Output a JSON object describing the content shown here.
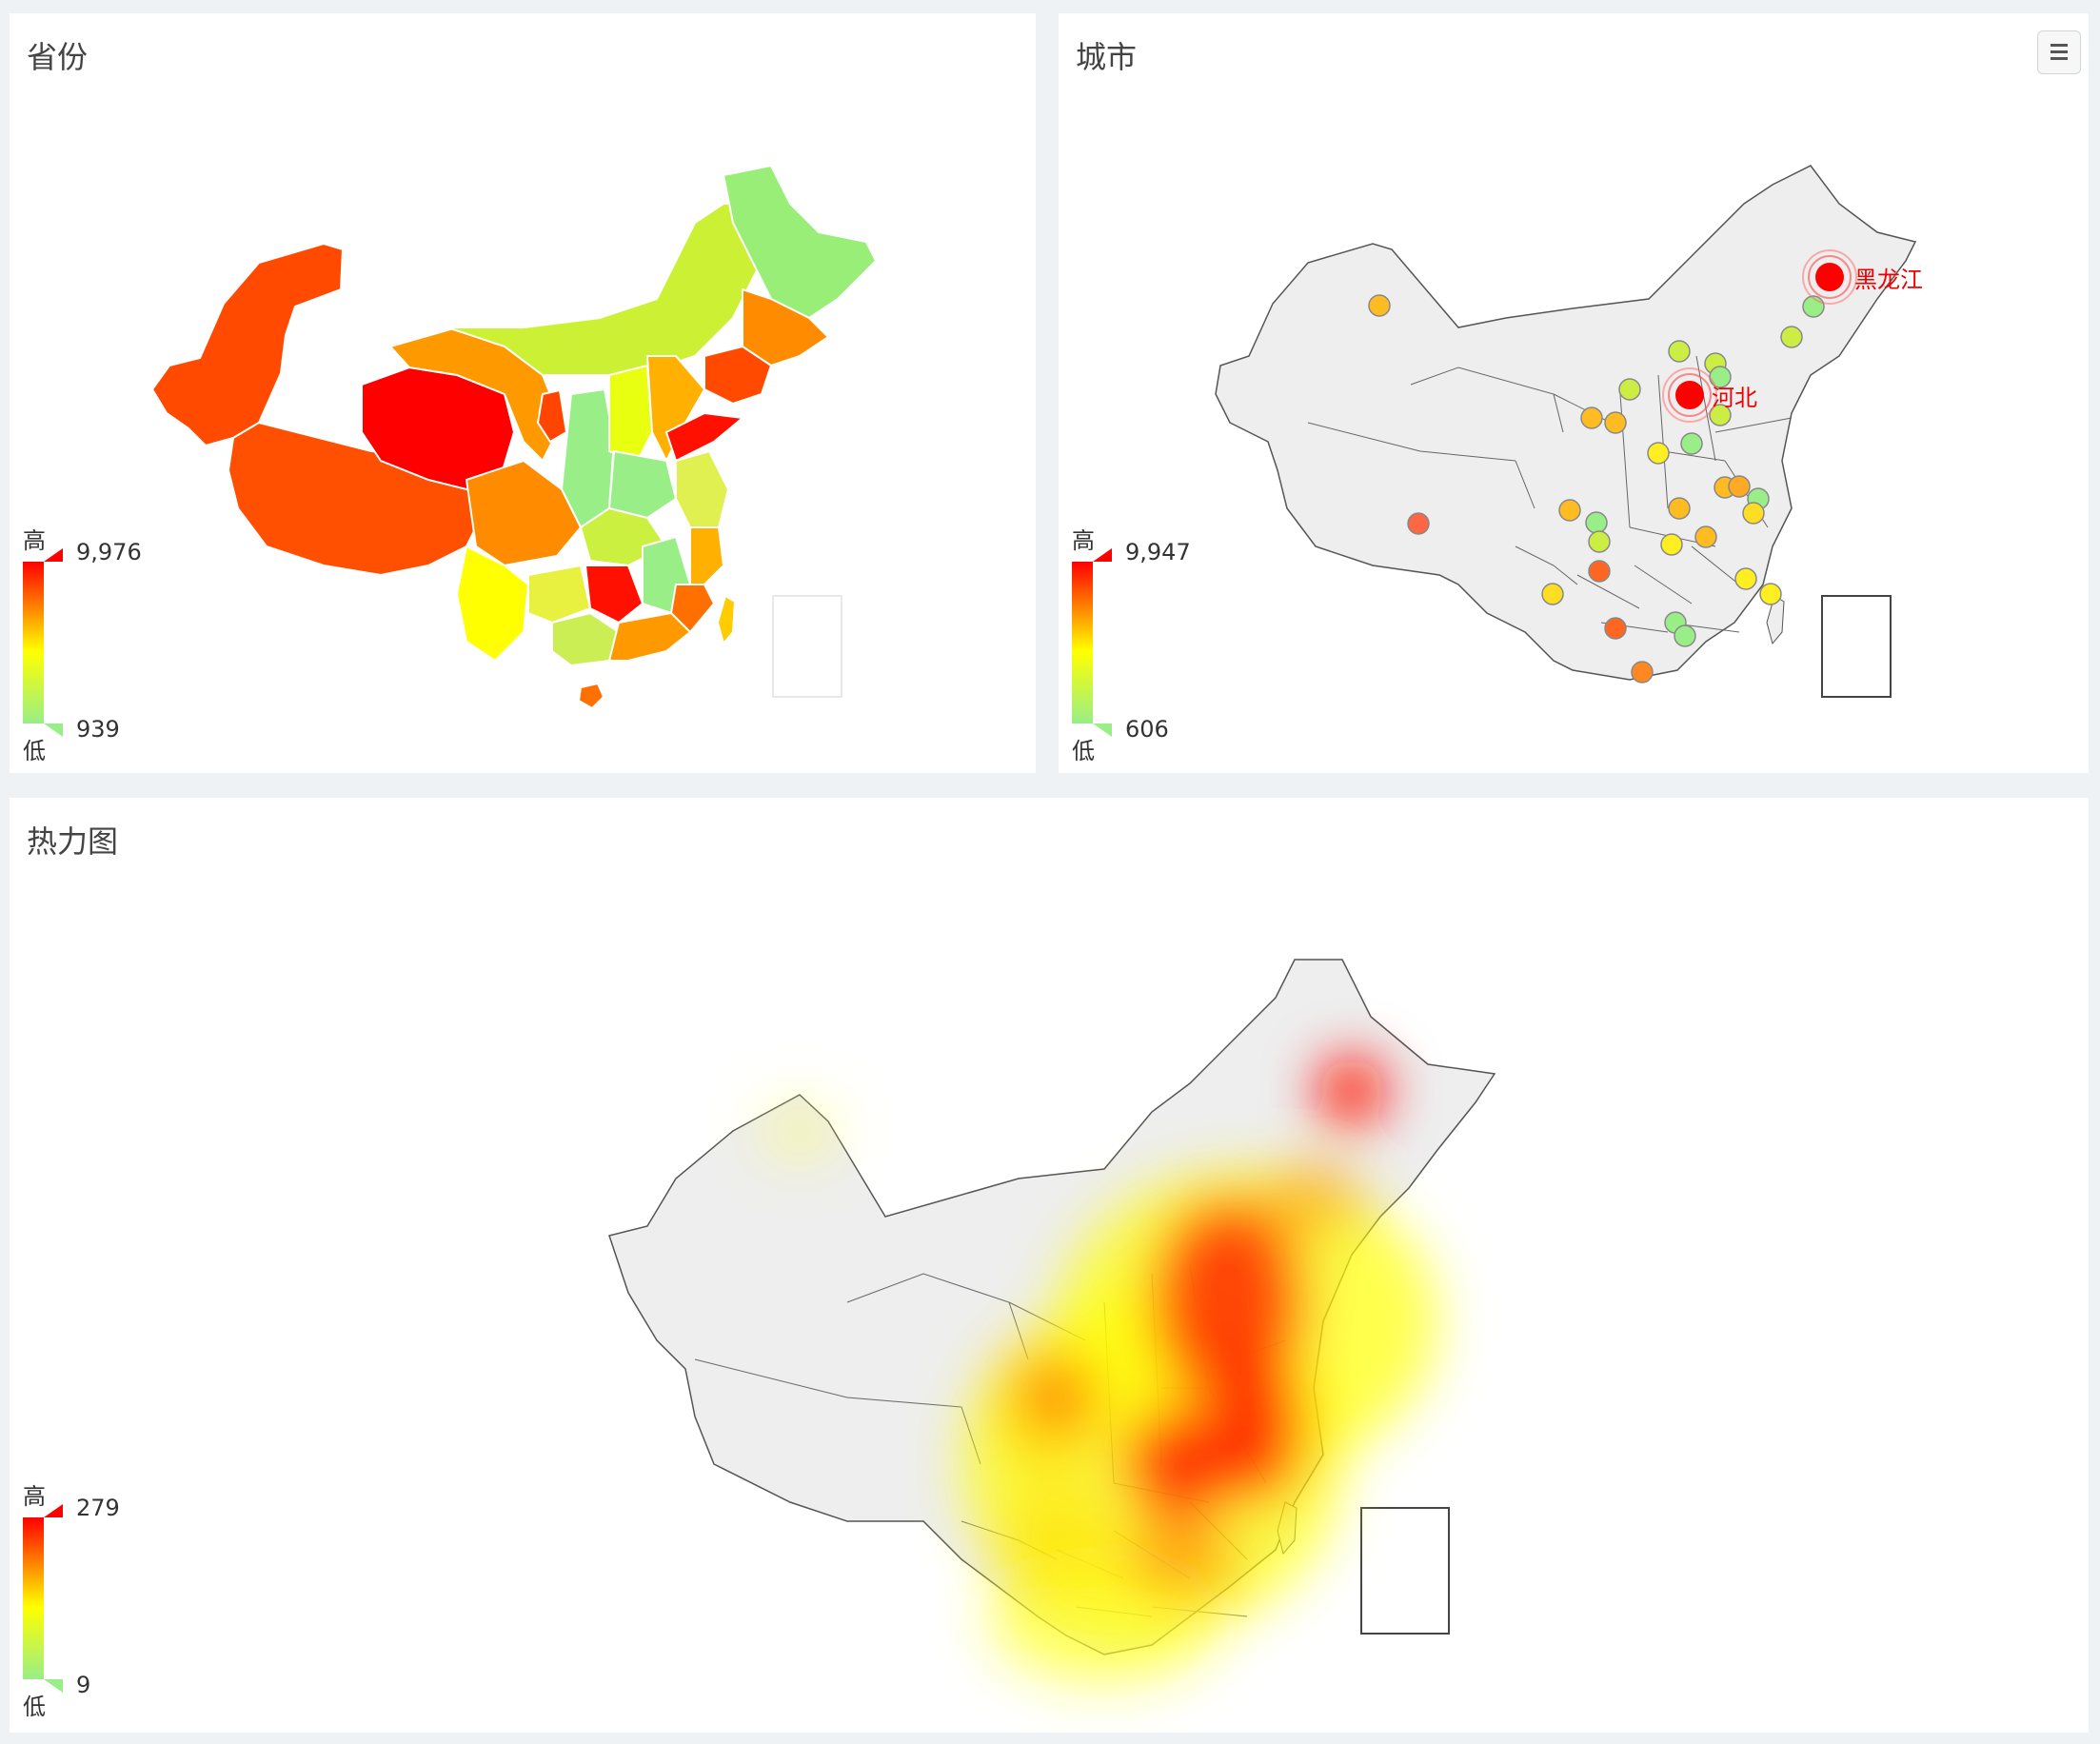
{
  "panels": {
    "province": {
      "title": "省份",
      "legend": {
        "high_label": "高",
        "low_label": "低",
        "max": "9,976",
        "min": "939"
      }
    },
    "city": {
      "title": "城市",
      "menu_icon": "hamburger-menu-icon",
      "legend": {
        "high_label": "高",
        "low_label": "低",
        "max": "9,947",
        "min": "606"
      },
      "labels": {
        "heilongjiang": "黑龙江",
        "hebei": "河北"
      }
    },
    "heatmap": {
      "title": "热力图",
      "legend": {
        "high_label": "高",
        "low_label": "低",
        "max": "279",
        "min": "9"
      }
    }
  },
  "colors": {
    "high": "#ff0000",
    "mid": "#ffff00",
    "low": "#99ee88",
    "map_fill": "#eeeeee",
    "map_stroke": "#555555"
  }
}
